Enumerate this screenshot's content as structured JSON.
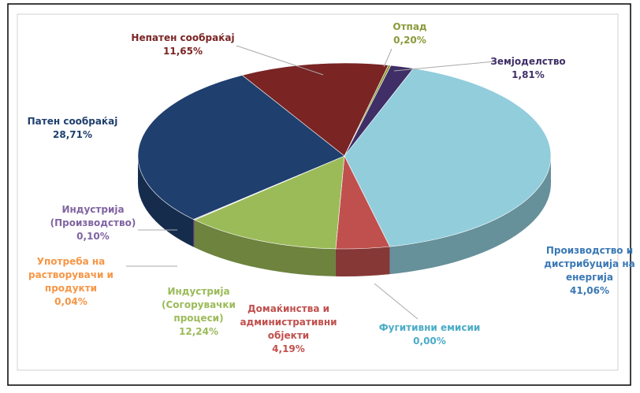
{
  "chart_data": {
    "type": "pie",
    "categories": [
      "Земјоделство",
      "Производство и дистрибуција на енергија",
      "Фугитивни емисии",
      "Домаќинства и административни објекти",
      "Индустрија (Согорувачки процеси)",
      "Употреба на растворувачи и продукти",
      "Индустрија (Производство)",
      "Патен сообраќај",
      "Непатен сообраќај",
      "Отпад"
    ],
    "values": [
      1.81,
      41.06,
      0.0,
      4.19,
      12.24,
      0.04,
      0.1,
      28.71,
      11.65,
      0.2
    ],
    "value_labels": [
      "1,81%",
      "41,06%",
      "0,00%",
      "4,19%",
      "12,24%",
      "0,04%",
      "0,10%",
      "28,71%",
      "11,65%",
      "0,20%"
    ],
    "colors": [
      "#3f2f66",
      "#92cddc",
      "#4bacc6",
      "#c0504d",
      "#9bbb59",
      "#f79646",
      "#8064a2",
      "#1f3f6e",
      "#7a2424",
      "#8a9a3a"
    ]
  }
}
